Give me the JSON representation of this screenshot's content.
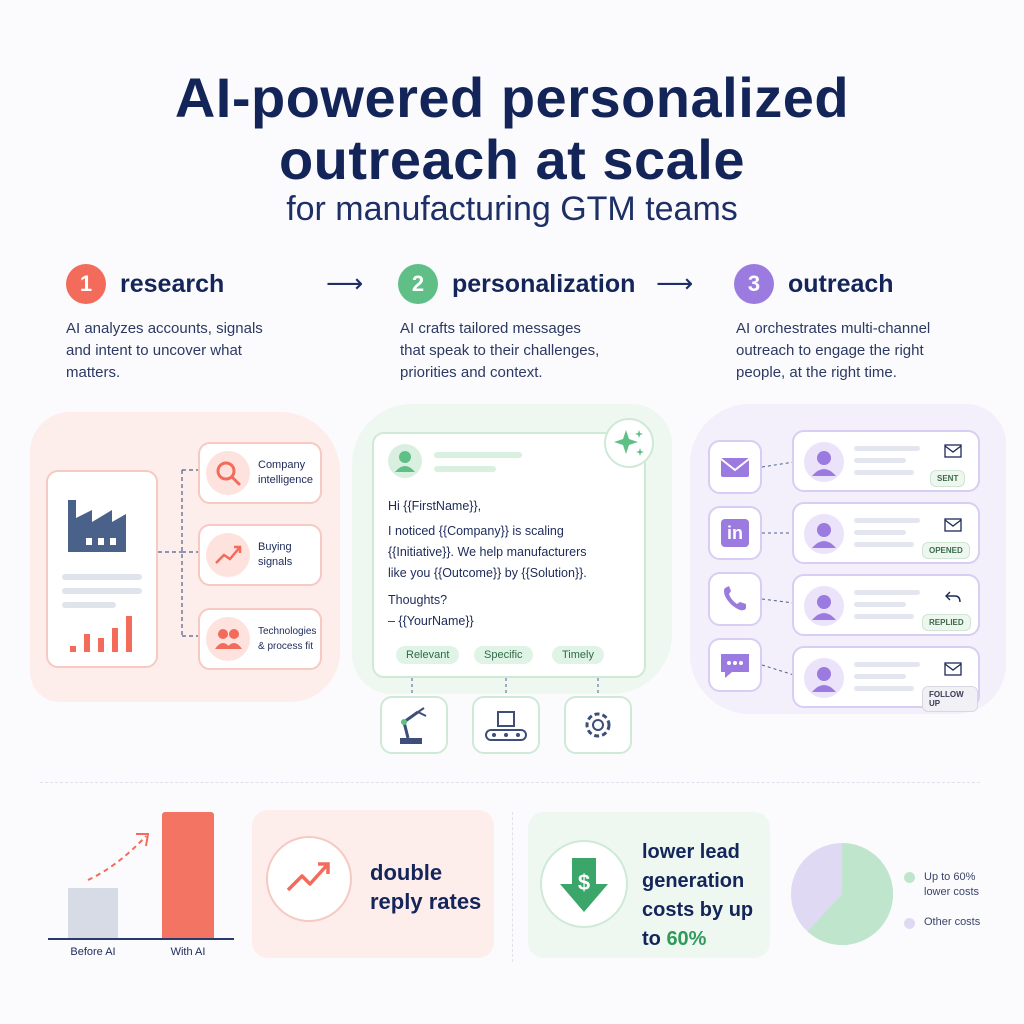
{
  "header": {
    "title_line1": "AI-powered personalized",
    "title_line2": "outreach at scale",
    "subtitle": "for manufacturing GTM teams"
  },
  "steps": [
    {
      "number": "1",
      "title": "research",
      "desc1": "AI  analyzes accounts, signals",
      "desc2": "and intent to uncover what",
      "desc3": "matters.",
      "color": "#f26b5b"
    },
    {
      "number": "2",
      "title": "personalization",
      "desc1": "AI crafts tailored messages",
      "desc2": "that speak to their challenges,",
      "desc3": "priorities and context.",
      "color": "#5fbf86"
    },
    {
      "number": "3",
      "title": "outreach",
      "desc1": "AI orchestrates multi-channel",
      "desc2": "outreach to engage the right",
      "desc3": "people, at the right time.",
      "color": "#9b7be0"
    }
  ],
  "research": {
    "items": [
      {
        "label1": "Company",
        "label2": "intelligence",
        "icon": "magnifier-icon"
      },
      {
        "label1": "Buying",
        "label2": "signals",
        "icon": "trend-up-icon"
      },
      {
        "label1": "Technologies",
        "label2": "& process fit",
        "icon": "people-icon"
      }
    ]
  },
  "email": {
    "greeting": "Hi {{FirstName}},",
    "line1": "I noticed {{Company}} is scaling",
    "line2": "{{Initiative}}. We help manufacturers",
    "line3": "like you {{Outcome}} by {{Solution}}.",
    "line4": "Thoughts?",
    "signoff": "– {{YourName}}",
    "tags": [
      "Relevant",
      "Specific",
      "Timely"
    ]
  },
  "outreach": {
    "channels": [
      {
        "icon": "mail-icon",
        "status_icon": "envelope-icon",
        "status": "SENT"
      },
      {
        "icon": "linkedin-icon",
        "status_icon": "envelope-icon",
        "status": "OPENED"
      },
      {
        "icon": "phone-icon",
        "status_icon": "reply-icon",
        "status": "REPLIED"
      },
      {
        "icon": "chat-icon",
        "status_icon": "envelope-icon",
        "status": "FOLLOW UP"
      }
    ],
    "linkedin_text": "in"
  },
  "results": {
    "bar_before_label": "Before AI",
    "bar_after_label": "With AI",
    "double_line1": "double",
    "double_line2": "reply rates",
    "lower_line1": "lower lead",
    "lower_line2": "generation",
    "lower_line3": "costs by up",
    "lower_line4_prefix": "to ",
    "lower_line4_value": "60%",
    "dollar": "$",
    "pie_legend1a": "Up to 60%",
    "pie_legend1b": "lower costs",
    "pie_legend2": "Other costs"
  },
  "colors": {
    "red": "#f26b5b",
    "green": "#5fbf86",
    "purple": "#9b7be0",
    "navy": "#132458"
  }
}
